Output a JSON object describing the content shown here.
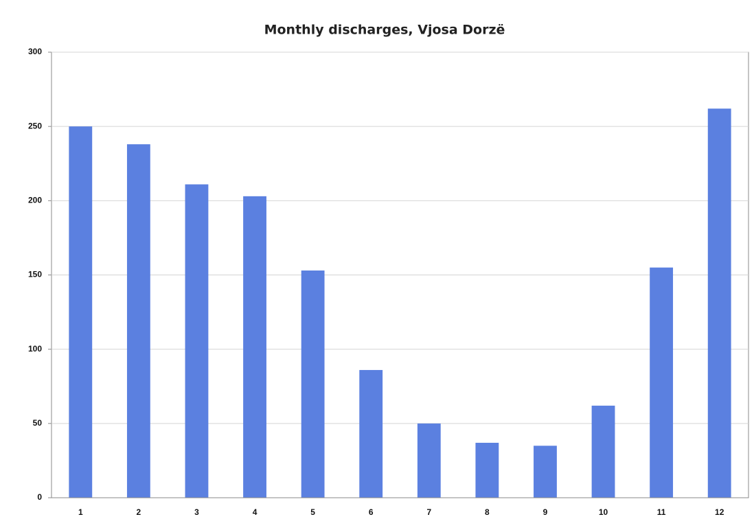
{
  "chart_data": {
    "type": "bar",
    "title": "Monthly discharges, Vjosa Dorzë",
    "categories": [
      "1",
      "2",
      "3",
      "4",
      "5",
      "6",
      "7",
      "8",
      "9",
      "10",
      "11",
      "12"
    ],
    "values": [
      250,
      238,
      211,
      203,
      153,
      86,
      50,
      37,
      35,
      62,
      155,
      262
    ],
    "color": "#5b80e0",
    "ylim": [
      0,
      300
    ],
    "yticks": [
      0,
      50,
      100,
      150,
      200,
      250,
      300
    ],
    "grid": true
  }
}
